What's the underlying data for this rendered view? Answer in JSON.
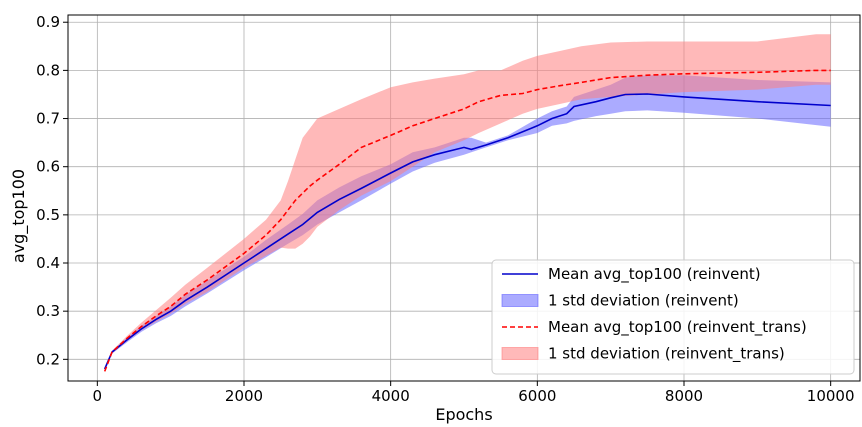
{
  "chart_data": {
    "type": "line",
    "xlabel": "Epochs",
    "ylabel": "avg_top100",
    "xlim": [
      -400,
      10400
    ],
    "ylim": [
      0.155,
      0.915
    ],
    "xticks": [
      0,
      2000,
      4000,
      6000,
      8000,
      10000
    ],
    "xtick_labels": [
      "0",
      "2000",
      "4000",
      "6000",
      "8000",
      "10000"
    ],
    "yticks": [
      0.2,
      0.3,
      0.4,
      0.5,
      0.6,
      0.7,
      0.8,
      0.9
    ],
    "ytick_labels": [
      "0.2",
      "0.3",
      "0.4",
      "0.5",
      "0.6",
      "0.7",
      "0.8",
      "0.9"
    ],
    "grid": true,
    "legend_position": "lower-right",
    "series": [
      {
        "name": "Mean avg_top100 (reinvent)",
        "kind": "line",
        "color": "#0000cc",
        "x": [
          100,
          200,
          400,
          600,
          800,
          1000,
          1200,
          1500,
          2000,
          2300,
          2600,
          2800,
          3000,
          3300,
          3600,
          4000,
          4300,
          4600,
          5000,
          5100,
          5300,
          5600,
          6000,
          6200,
          6400,
          6500,
          6800,
          7000,
          7200,
          7500,
          8000,
          9000,
          10000
        ],
        "values": [
          0.18,
          0.215,
          0.24,
          0.263,
          0.283,
          0.3,
          0.322,
          0.35,
          0.4,
          0.43,
          0.46,
          0.48,
          0.505,
          0.532,
          0.555,
          0.587,
          0.61,
          0.625,
          0.64,
          0.636,
          0.645,
          0.66,
          0.685,
          0.7,
          0.71,
          0.725,
          0.735,
          0.743,
          0.75,
          0.751,
          0.745,
          0.735,
          0.727
        ]
      },
      {
        "name": "1 std deviation (reinvent)",
        "kind": "band",
        "color": "#6666ff",
        "x": [
          100,
          200,
          400,
          600,
          800,
          1000,
          1200,
          1500,
          2000,
          2300,
          2600,
          2800,
          3000,
          3300,
          3600,
          4000,
          4300,
          4600,
          5000,
          5100,
          5300,
          5600,
          6000,
          6200,
          6400,
          6500,
          6800,
          7000,
          7200,
          7500,
          8000,
          9000,
          10000
        ],
        "lower": [
          0.18,
          0.212,
          0.235,
          0.257,
          0.275,
          0.29,
          0.31,
          0.337,
          0.385,
          0.412,
          0.44,
          0.458,
          0.48,
          0.505,
          0.53,
          0.565,
          0.59,
          0.608,
          0.625,
          0.63,
          0.64,
          0.655,
          0.67,
          0.685,
          0.69,
          0.695,
          0.705,
          0.71,
          0.715,
          0.717,
          0.712,
          0.7,
          0.683
        ],
        "upper": [
          0.18,
          0.218,
          0.245,
          0.27,
          0.29,
          0.31,
          0.334,
          0.363,
          0.413,
          0.448,
          0.48,
          0.502,
          0.53,
          0.557,
          0.58,
          0.605,
          0.63,
          0.64,
          0.66,
          0.66,
          0.65,
          0.665,
          0.7,
          0.715,
          0.725,
          0.745,
          0.76,
          0.77,
          0.785,
          0.79,
          0.79,
          0.78,
          0.775
        ]
      },
      {
        "name": "Mean avg_top100 (reinvent_trans)",
        "kind": "line",
        "color": "#ff0000",
        "dashed": true,
        "x": [
          100,
          200,
          400,
          600,
          800,
          1000,
          1200,
          1500,
          2000,
          2300,
          2500,
          2700,
          2900,
          3000,
          3300,
          3600,
          4000,
          4300,
          4600,
          5000,
          5200,
          5500,
          5800,
          6000,
          6300,
          6600,
          7000,
          7500,
          8000,
          9000,
          9800,
          10000
        ],
        "values": [
          0.175,
          0.215,
          0.243,
          0.268,
          0.29,
          0.31,
          0.335,
          0.365,
          0.42,
          0.458,
          0.49,
          0.53,
          0.56,
          0.572,
          0.605,
          0.64,
          0.665,
          0.685,
          0.7,
          0.72,
          0.735,
          0.748,
          0.752,
          0.76,
          0.768,
          0.775,
          0.785,
          0.79,
          0.793,
          0.796,
          0.8,
          0.8
        ]
      },
      {
        "name": "1 std deviation (reinvent_trans)",
        "kind": "band",
        "color": "#ff8080",
        "x": [
          100,
          200,
          400,
          600,
          800,
          1000,
          1200,
          1500,
          2000,
          2300,
          2500,
          2600,
          2700,
          2800,
          2900,
          3000,
          3300,
          3600,
          4000,
          4300,
          4600,
          5000,
          5200,
          5500,
          5800,
          6000,
          6300,
          6600,
          7000,
          7500,
          8000,
          9000,
          9800,
          10000
        ],
        "lower": [
          0.175,
          0.212,
          0.238,
          0.26,
          0.278,
          0.295,
          0.315,
          0.34,
          0.39,
          0.415,
          0.432,
          0.43,
          0.43,
          0.44,
          0.455,
          0.475,
          0.51,
          0.54,
          0.57,
          0.6,
          0.63,
          0.655,
          0.67,
          0.69,
          0.71,
          0.72,
          0.73,
          0.74,
          0.745,
          0.75,
          0.755,
          0.76,
          0.77,
          0.77
        ],
        "upper": [
          0.175,
          0.218,
          0.248,
          0.276,
          0.302,
          0.328,
          0.355,
          0.39,
          0.45,
          0.49,
          0.53,
          0.57,
          0.615,
          0.66,
          0.68,
          0.7,
          0.72,
          0.74,
          0.765,
          0.775,
          0.783,
          0.792,
          0.8,
          0.8,
          0.82,
          0.83,
          0.84,
          0.85,
          0.858,
          0.86,
          0.86,
          0.86,
          0.875,
          0.875
        ]
      }
    ]
  }
}
